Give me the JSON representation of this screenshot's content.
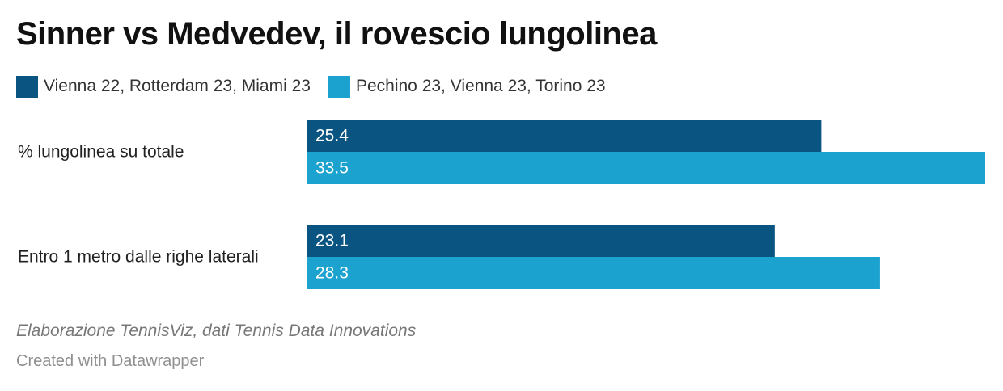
{
  "title": "Sinner vs Medvedev, il rovescio lungolinea",
  "colors": {
    "series1": "#0a5482",
    "series2": "#1ba2cf",
    "label_on_bar": "#ffffff"
  },
  "chart_data": {
    "type": "bar",
    "orientation": "horizontal",
    "title": "Sinner vs Medvedev, il rovescio lungolinea",
    "categories": [
      "% lungolinea su totale",
      "Entro 1 metro dalle righe laterali"
    ],
    "series": [
      {
        "name": "Vienna 22, Rotterdam 23, Miami 23",
        "values": [
          25.4,
          23.1
        ]
      },
      {
        "name": "Pechino 23, Vienna 23, Torino 23",
        "values": [
          33.5,
          28.3
        ]
      }
    ],
    "xlim": [
      0,
      33.5
    ],
    "grid": false,
    "legend": "top-left"
  },
  "notes": "Elaborazione TennisViz, dati Tennis Data Innovations",
  "footer": "Created with Datawrapper"
}
